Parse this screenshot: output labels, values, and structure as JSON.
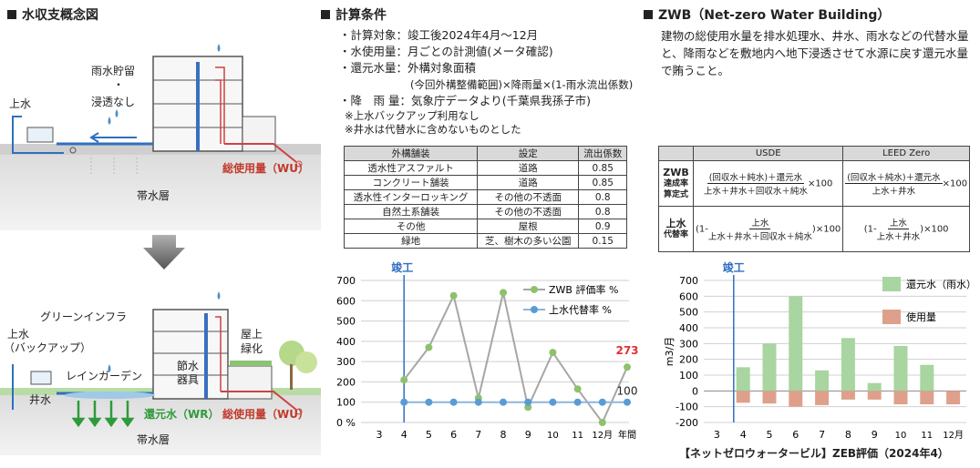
{
  "sections": {
    "concept": "水収支概念図",
    "calc": "計算条件",
    "zwb": "ZWB（Net-zero Water Building）"
  },
  "top_diagram": {
    "rain_storage": "雨水貯留",
    "dot": "・",
    "no_infiltration": "浸透なし",
    "tap_water": "上水",
    "total_use": "総使用量（WU）",
    "aquifer": "帯水層"
  },
  "bottom_diagram": {
    "green_infra": "グリーンインフラ",
    "tap_water": "上水",
    "backup": "（バックアップ）",
    "well": "井水",
    "rain_garden": "レインガーデン",
    "saving_1": "節水",
    "saving_2": "器具",
    "roof_1": "屋上",
    "roof_2": "緑化",
    "return_water": "還元水（WR）",
    "total_use": "総使用量（WU）",
    "aquifer": "帯水層"
  },
  "conditions": [
    "・計算対象：竣工後2024年4月～12月",
    "・水使用量：月ごとの計測値(メータ確認)",
    "・還元水量：外構対象面積",
    "(今回外構整備範囲)×降雨量×(1-雨水流出係数)",
    "・降　雨 量：気象庁データより(千葉県我孫子市)",
    "※上水バックアップ利用なし",
    "※井水は代替水に含めないものとした"
  ],
  "runoff_table": {
    "headers": [
      "外構舗装",
      "設定",
      "流出係数"
    ],
    "rows": [
      [
        "透水性アスファルト",
        "道路",
        "0.85"
      ],
      [
        "コンクリート舗装",
        "道路",
        "0.85"
      ],
      [
        "透水性インターロッキング",
        "その他の不透面",
        "0.8"
      ],
      [
        "自然土系舗装",
        "その他の不透面",
        "0.8"
      ],
      [
        "その他",
        "屋根",
        "0.9"
      ],
      [
        "緑地",
        "芝、樹木の多い公園",
        "0.15"
      ]
    ]
  },
  "zwb_description": "建物の総使用水量を排水処理水、井水、雨水などの代替水量と、降雨などを敷地内へ地下浸透させて水源に戻す還元水量で賄うこと。",
  "formula_table": {
    "headers": [
      "",
      "USDE",
      "LEED Zero"
    ],
    "row1_label": [
      "ZWB",
      "達成率",
      "算定式"
    ],
    "row2_label": [
      "上水",
      "代替率"
    ],
    "usde_ach_num": "(回収水＋純水)＋還元水",
    "usde_ach_den": "上水＋井水＋回収水＋純水",
    "leed_ach_num": "(回収水＋純水)＋還元水",
    "leed_ach_den": "上水＋井水",
    "times100": "×100",
    "usde_sub_pre": "(1-",
    "usde_sub_num": "上水",
    "usde_sub_den": "上水＋井水＋回収水＋純水",
    "usde_sub_post": ")×100",
    "leed_sub_pre": "(1-",
    "leed_sub_num": "上水",
    "leed_sub_den": "上水＋井水",
    "leed_sub_post": ")×100"
  },
  "footer": "【ネットゼロウォータービル】ZEB評価（2024年4）",
  "chart_data": [
    {
      "type": "line",
      "marker": "竣工",
      "categories": [
        "3",
        "4",
        "5",
        "6",
        "7",
        "8",
        "9",
        "10",
        "11",
        "12月",
        "年間"
      ],
      "y_ticks": [
        "0 %",
        "100",
        "200",
        "300",
        "400",
        "500",
        "600",
        "700"
      ],
      "ylim": [
        0,
        700
      ],
      "series": [
        {
          "name": "ZWB 評価率 %",
          "color": "#8dc26b",
          "values": [
            null,
            210,
            370,
            625,
            120,
            640,
            75,
            345,
            165,
            0,
            273
          ]
        },
        {
          "name": "上水代替率 %",
          "color": "#5b9bd5",
          "values": [
            null,
            100,
            100,
            100,
            100,
            100,
            100,
            100,
            100,
            100,
            100
          ]
        }
      ],
      "annotations": [
        {
          "text": "273",
          "color": "#e03030"
        },
        {
          "text": "100",
          "color": "#222222"
        }
      ],
      "grid": true,
      "legend": "top-right"
    },
    {
      "type": "bar",
      "marker": "竣工",
      "ylabel": "m3/月",
      "categories": [
        "3",
        "4",
        "5",
        "6",
        "7",
        "8",
        "9",
        "10",
        "11",
        "12月"
      ],
      "y_ticks": [
        "-200",
        "-100",
        "0",
        "100",
        "200",
        "300",
        "400",
        "500",
        "600",
        "700"
      ],
      "ylim": [
        -200,
        700
      ],
      "series": [
        {
          "name": "還元水（雨水）",
          "color": "#a8d5a0",
          "values": [
            null,
            150,
            300,
            600,
            130,
            335,
            50,
            285,
            165,
            0
          ]
        },
        {
          "name": "使用量",
          "color": "#dfa08b",
          "values": [
            null,
            -75,
            -80,
            -100,
            -90,
            -55,
            -55,
            -85,
            -85,
            -85
          ]
        }
      ],
      "grid": true,
      "legend": "top-right"
    }
  ]
}
